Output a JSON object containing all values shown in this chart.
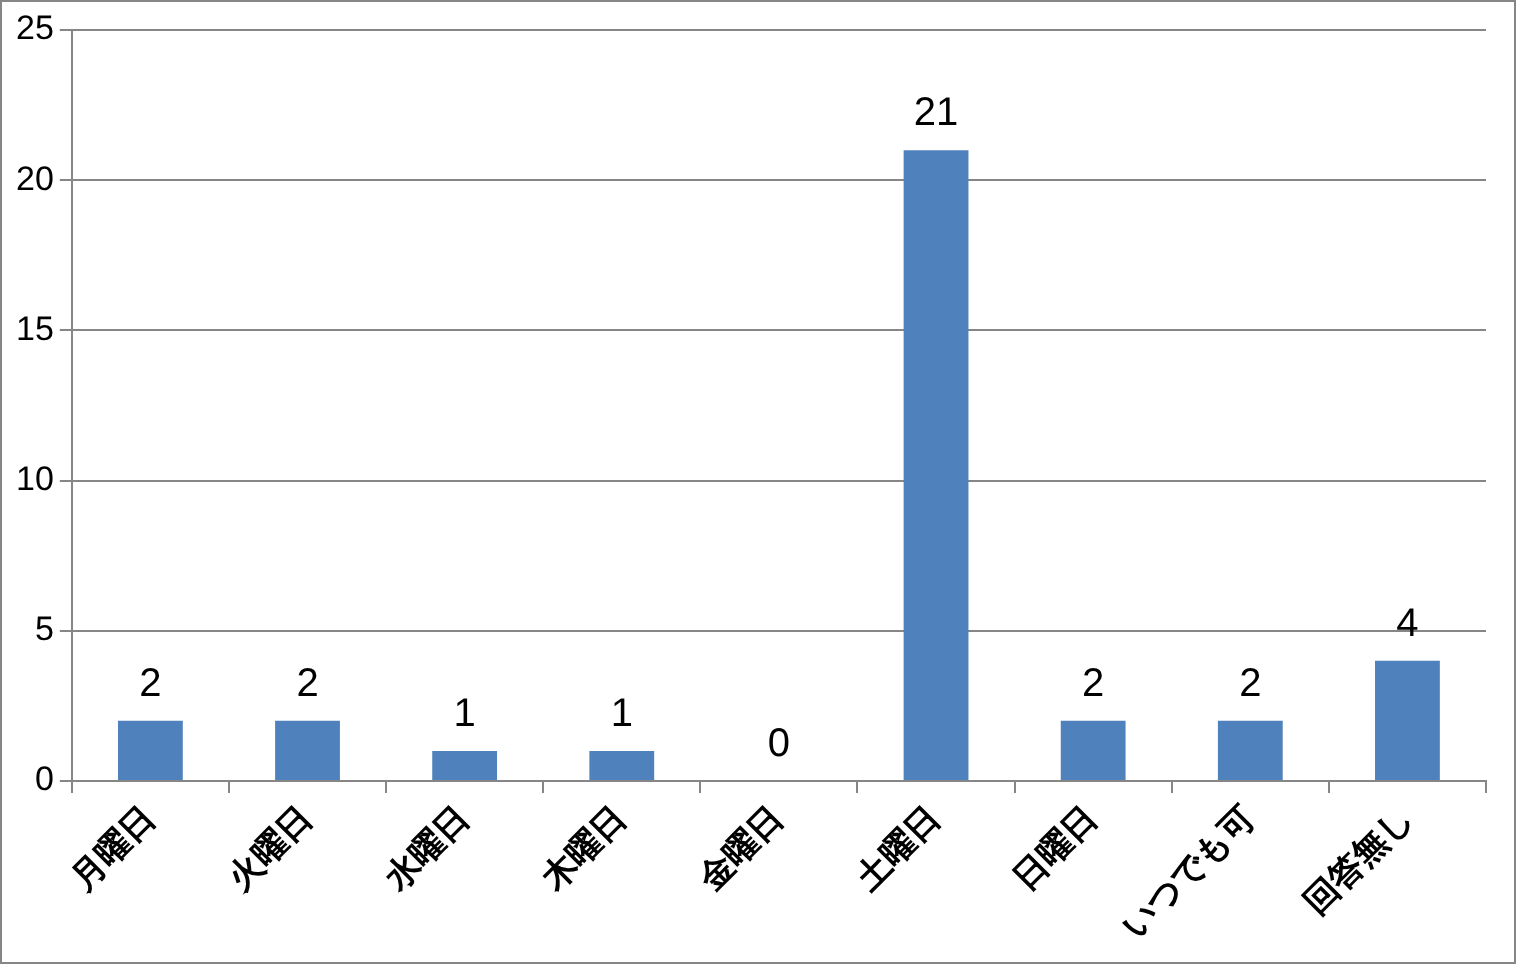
{
  "chart_data": {
    "type": "bar",
    "categories": [
      "月曜日",
      "火曜日",
      "水曜日",
      "木曜日",
      "金曜日",
      "土曜日",
      "日曜日",
      "いつでも可",
      "回答無し"
    ],
    "values": [
      2,
      2,
      1,
      1,
      0,
      21,
      2,
      2,
      4
    ],
    "color": "#4f81bd",
    "ylim": [
      0,
      25
    ],
    "yticks": [
      0,
      5,
      10,
      15,
      20,
      25
    ],
    "grid": "y",
    "data_labels": true
  }
}
